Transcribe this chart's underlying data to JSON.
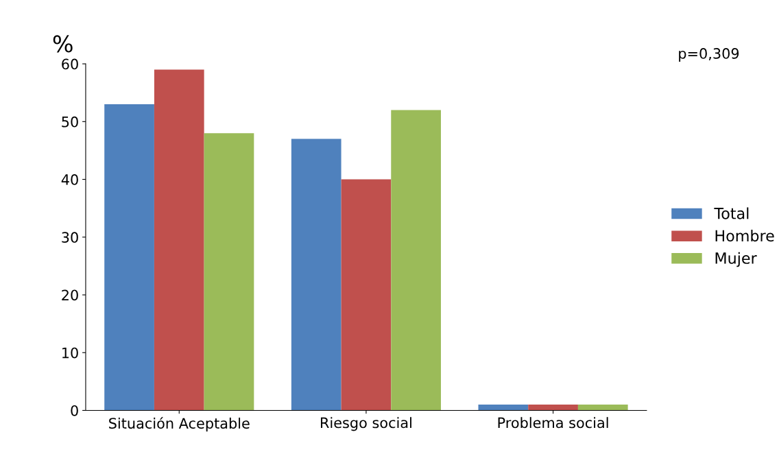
{
  "chart_data": {
    "type": "bar",
    "ylabel": "%",
    "categories": [
      "Situación Aceptable",
      "Riesgo social",
      "Problema social"
    ],
    "series": [
      {
        "name": "Total",
        "color": "#4f81bd",
        "values": [
          53,
          47,
          1
        ]
      },
      {
        "name": "Hombre",
        "color": "#c0504d",
        "values": [
          59,
          40,
          1
        ]
      },
      {
        "name": "Mujer",
        "color": "#9bbb59",
        "values": [
          48,
          52,
          1
        ]
      }
    ],
    "ylim": [
      0,
      60
    ],
    "yticks": [
      0,
      10,
      20,
      30,
      40,
      50,
      60
    ],
    "grid": false,
    "legend": "right",
    "annotations": [
      "p=0,309"
    ]
  }
}
